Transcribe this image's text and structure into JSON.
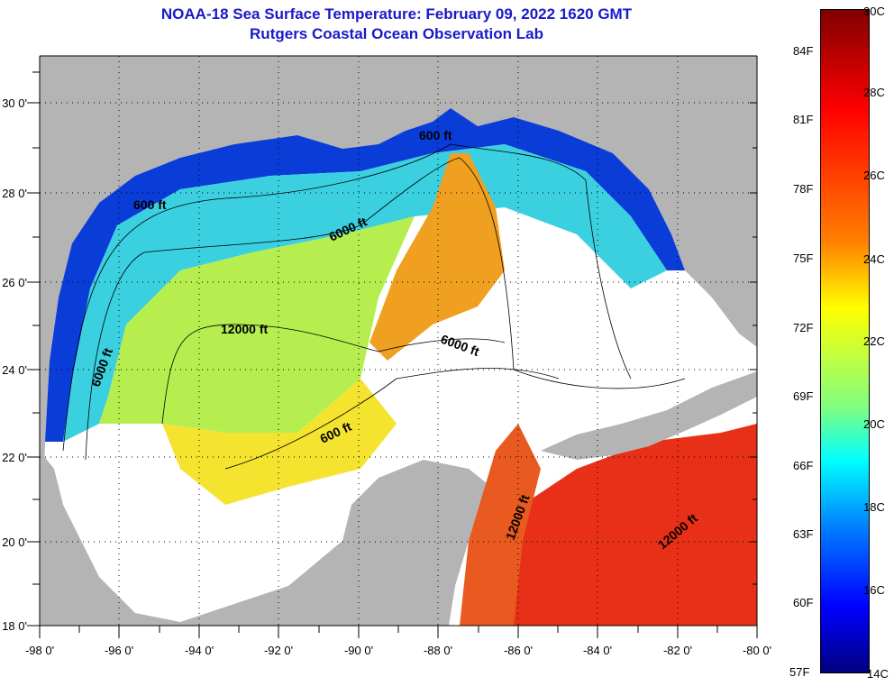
{
  "title": {
    "line1": "NOAA-18 Sea Surface Temperature:  February 09, 2022 1620 GMT",
    "line2": "Rutgers Coastal Ocean Observation Lab"
  },
  "map": {
    "lon_labels": [
      "-98 0'",
      "-96 0'",
      "-94 0'",
      "-92 0'",
      "-90 0'",
      "-88 0'",
      "-86 0'",
      "-84 0'",
      "-82 0'",
      "-80 0'"
    ],
    "lat_labels": [
      "30 0'",
      "28 0'",
      "26 0'",
      "24 0'",
      "22 0'",
      "20 0'",
      "18 0'"
    ],
    "contour_labels": [
      "600 ft",
      "600 ft",
      "6000 ft",
      "12000 ft",
      "6000 ft",
      "6000 ft",
      "600 ft",
      "12000 ft",
      "12000 ft"
    ]
  },
  "colorbar": {
    "f_labels": [
      "84F",
      "81F",
      "78F",
      "75F",
      "72F",
      "69F",
      "66F",
      "63F",
      "60F",
      "57F"
    ],
    "c_labels": [
      "30C",
      "28C",
      "26C",
      "24C",
      "22C",
      "20C",
      "18C",
      "16C",
      "14C"
    ]
  }
}
